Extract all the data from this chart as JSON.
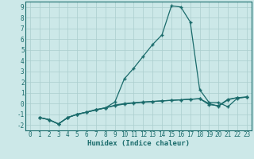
{
  "xlabel": "Humidex (Indice chaleur)",
  "bg_color": "#cce8e8",
  "line_color": "#1a6b6b",
  "grid_color": "#aacece",
  "xlim": [
    -0.5,
    23.5
  ],
  "ylim": [
    -2.5,
    9.5
  ],
  "xticks": [
    0,
    1,
    2,
    3,
    4,
    5,
    6,
    7,
    8,
    9,
    10,
    11,
    12,
    13,
    14,
    15,
    16,
    17,
    18,
    19,
    20,
    21,
    22,
    23
  ],
  "yticks": [
    -2,
    -1,
    0,
    1,
    2,
    3,
    4,
    5,
    6,
    7,
    8,
    9
  ],
  "series": [
    {
      "x": [
        1,
        2,
        3,
        4,
        5,
        6,
        7,
        8,
        9,
        10,
        11,
        12,
        13,
        14,
        15,
        16,
        17,
        18,
        19,
        20,
        21,
        22,
        23
      ],
      "y": [
        -1.3,
        -1.5,
        -1.9,
        -1.3,
        -1.0,
        -0.8,
        -0.6,
        -0.4,
        0.15,
        2.3,
        3.3,
        4.4,
        5.5,
        6.4,
        9.1,
        9.0,
        7.6,
        1.3,
        0.1,
        0.1,
        -0.3,
        0.5,
        0.6
      ]
    },
    {
      "x": [
        1,
        2,
        3,
        4,
        5,
        6,
        7,
        8,
        9,
        10,
        11,
        12,
        13,
        14,
        15,
        16,
        17,
        18,
        19,
        20,
        21,
        22,
        23
      ],
      "y": [
        -1.3,
        -1.5,
        -1.9,
        -1.3,
        -1.0,
        -0.8,
        -0.55,
        -0.4,
        -0.2,
        -0.05,
        0.05,
        0.12,
        0.18,
        0.25,
        0.3,
        0.35,
        0.4,
        0.45,
        0.0,
        -0.25,
        0.35,
        0.55,
        0.6
      ]
    },
    {
      "x": [
        1,
        2,
        3,
        4,
        5,
        6,
        7,
        8,
        9,
        10,
        11,
        12,
        13,
        14,
        15,
        16,
        17,
        18,
        19,
        20,
        21,
        22,
        23
      ],
      "y": [
        -1.3,
        -1.5,
        -1.9,
        -1.3,
        -1.0,
        -0.8,
        -0.6,
        -0.4,
        -0.15,
        0.0,
        0.08,
        0.15,
        0.2,
        0.25,
        0.3,
        0.35,
        0.4,
        0.45,
        -0.1,
        -0.2,
        0.4,
        0.55,
        0.6
      ]
    }
  ],
  "marker": "+",
  "markersize": 3.5,
  "linewidth": 0.9,
  "tick_fontsize": 5.5,
  "xlabel_fontsize": 6.5
}
